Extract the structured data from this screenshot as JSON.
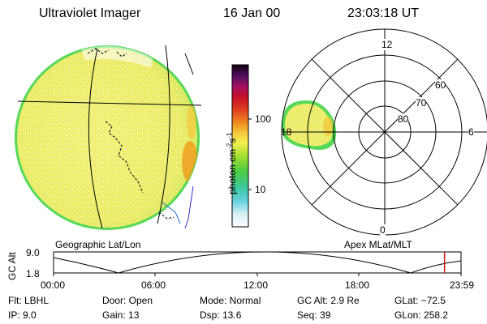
{
  "header": {
    "instrument": "Ultraviolet Imager",
    "date": "16 Jan 00",
    "time": "23:03:18 UT"
  },
  "colorbar": {
    "tick_100": "100",
    "tick_10": "10",
    "unit": "photon cm",
    "exp1": "-2",
    "s_char": "s",
    "exp2": "-1"
  },
  "left_panel": {
    "label": "Geographic Lat/Lon"
  },
  "polar": {
    "label": "Apex MLat/MLT",
    "mlt_12": "12",
    "mlt_18": "18",
    "mlt_6": "6",
    "mlt_0": "0",
    "lat_60": "60",
    "lat_70": "70",
    "lat_80": "80"
  },
  "altitude_plot": {
    "ylabel": "GC Alt",
    "ytick_top": "9.0",
    "ytick_bottom": "1.8",
    "xticks": [
      "00:00",
      "06:00",
      "12:00",
      "18:00",
      "23:59"
    ],
    "current_time_fraction": 0.9595
  },
  "info": {
    "flt": "Flt: LBHL",
    "ip": "IP:  9.0",
    "door": "Door: Open",
    "gain": "Gain: 13",
    "mode": "Mode: Normal",
    "dsp": "Dsp:  13.6",
    "gcalt": "GC Alt: 2.9 Re",
    "seq": "Seq: 39",
    "glat": "GLat: −72.5",
    "glon": "GLon: 258.2"
  },
  "colors": {
    "map_fill": "#ecec6a",
    "rim_green": "#58d858",
    "hot_orange": "#f0a020",
    "time_marker": "#d01010"
  }
}
